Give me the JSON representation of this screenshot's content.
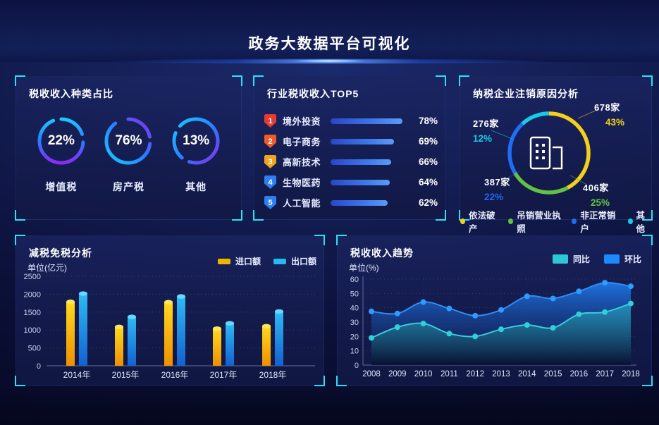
{
  "header": {
    "title": "政务大数据平台可视化"
  },
  "panels": {
    "tax_type": {
      "title": "税收收入种类占比"
    },
    "industry_top5": {
      "title": "行业税收收入TOP5"
    },
    "cancel_reason": {
      "title": "纳税企业注销原因分析"
    },
    "tax_reduction": {
      "title": "减税免税分析",
      "unit": "单位(亿元)"
    },
    "tax_trend": {
      "title": "税收收入趋势",
      "unit": "单位(%)"
    }
  },
  "colors": {
    "bracket": "#2be2f5",
    "ring_gradient": [
      "#19c9ff",
      "#2b7bff",
      "#8a2bf0"
    ],
    "top5_bar": [
      "#2946c8",
      "#5a9bf8"
    ]
  },
  "chart_data": [
    {
      "id": "tax-type-rings",
      "type": "donut",
      "title": "税收收入种类占比",
      "items": [
        {
          "label": "增值税",
          "value": 22,
          "pct": "22%"
        },
        {
          "label": "房产税",
          "value": 76,
          "pct": "76%"
        },
        {
          "label": "其他",
          "value": 13,
          "pct": "13%"
        }
      ]
    },
    {
      "id": "industry-top5",
      "type": "bar",
      "title": "行业税收收入TOP5",
      "categories": [
        "境外投资",
        "电子商务",
        "高新技术",
        "生物医药",
        "人工智能"
      ],
      "values": [
        78,
        69,
        66,
        64,
        62
      ],
      "pcts": [
        "78%",
        "69%",
        "66%",
        "64%",
        "62%"
      ],
      "ranks": [
        "1",
        "2",
        "3",
        "4",
        "5"
      ],
      "rank_colors": [
        "#e63c2f",
        "#f05a28",
        "#f0a41e",
        "#2e7ff2",
        "#2e7ff2"
      ],
      "xlabel": "",
      "ylabel": ""
    },
    {
      "id": "cancel-reasons",
      "type": "pie",
      "title": "纳税企业注销原因分析",
      "slices": [
        {
          "label": "依法破产",
          "count": "678家",
          "pct": "43%",
          "value": 43,
          "color": "#f5d01a"
        },
        {
          "label": "吊销营业执照",
          "count": "406家",
          "pct": "25%",
          "value": 25,
          "color": "#63c243"
        },
        {
          "label": "非正常销户",
          "count": "387家",
          "pct": "22%",
          "value": 22,
          "color": "#1f6df5"
        },
        {
          "label": "其他",
          "count": "276家",
          "pct": "12%",
          "value": 12,
          "color": "#16cbe8"
        }
      ],
      "legend": [
        "依法破产",
        "吊销营业执照",
        "非正常销户",
        "其他"
      ],
      "legend_position": "bottom"
    },
    {
      "id": "tax-reduction",
      "type": "bar",
      "title": "减税免税分析",
      "ylabel": "单位(亿元)",
      "categories": [
        "2014年",
        "2015年",
        "2016年",
        "2017年",
        "2018年"
      ],
      "series": [
        {
          "name": "进口额",
          "color": "#f0b400",
          "values": [
            1850,
            1150,
            1840,
            1100,
            1170
          ]
        },
        {
          "name": "出口额",
          "color": "#29b9f2",
          "values": [
            2080,
            1430,
            2000,
            1250,
            1580
          ]
        }
      ],
      "ylim": [
        0,
        2500
      ],
      "yticks": [
        0,
        500,
        1000,
        1500,
        2000,
        2500
      ],
      "grid": "dotted",
      "legend_position": "top-right"
    },
    {
      "id": "tax-trend",
      "type": "area",
      "title": "税收收入趋势",
      "ylabel": "单位(%)",
      "x": [
        "2008",
        "2009",
        "2010",
        "2011",
        "2012",
        "2013",
        "2014",
        "2015",
        "2016",
        "2017",
        "2018"
      ],
      "series": [
        {
          "name": "同比",
          "color": "#2ec7d6",
          "values": [
            19,
            26.5,
            29,
            22,
            20,
            25,
            28,
            26,
            35.5,
            37,
            43
          ]
        },
        {
          "name": "环比",
          "color": "#1e88ff",
          "values": [
            37.5,
            36,
            44,
            39.5,
            34.5,
            38.5,
            48,
            46.5,
            51.5,
            57.5,
            55
          ]
        }
      ],
      "ylim": [
        0,
        60
      ],
      "yticks": [
        0,
        10,
        20,
        30,
        40,
        50,
        60
      ],
      "grid": "dotted",
      "legend_position": "top-right"
    }
  ]
}
